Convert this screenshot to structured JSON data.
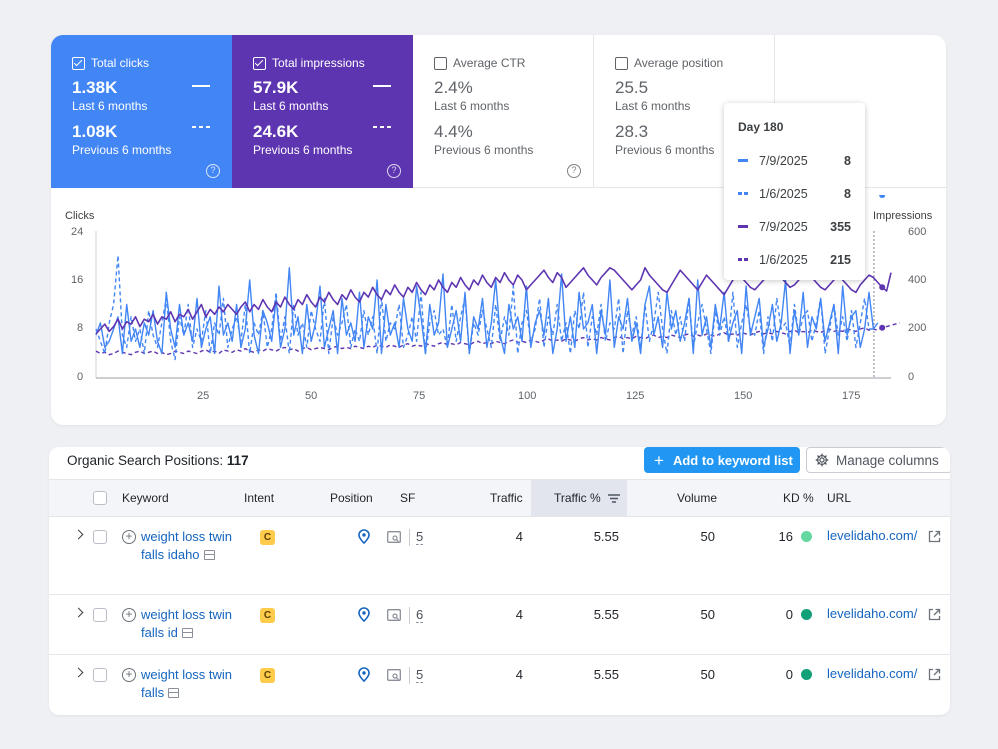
{
  "metrics": [
    {
      "label": "Total clicks",
      "checked": true,
      "current_value": "1.38K",
      "current_period": "Last 6 months",
      "previous_value": "1.08K",
      "previous_period": "Previous 6 months"
    },
    {
      "label": "Total impressions",
      "checked": true,
      "current_value": "57.9K",
      "current_period": "Last 6 months",
      "previous_value": "24.6K",
      "previous_period": "Previous 6 months"
    },
    {
      "label": "Average CTR",
      "checked": false,
      "current_value": "2.4%",
      "current_period": "Last 6 months",
      "previous_value": "4.4%",
      "previous_period": "Previous 6 months"
    },
    {
      "label": "Average position",
      "checked": false,
      "current_value": "25.5",
      "current_period": "Last 6 months",
      "previous_value": "28.3",
      "previous_period": "Previous 6 months"
    }
  ],
  "chart": {
    "left_axis_title": "Clicks",
    "right_axis_title": "Impressions",
    "left_ticks": [
      "24",
      "16",
      "8",
      "0"
    ],
    "right_ticks": [
      "600",
      "400",
      "200",
      "0"
    ],
    "x_ticks": [
      "25",
      "50",
      "75",
      "100",
      "125",
      "150",
      "175"
    ]
  },
  "tooltip": {
    "title": "Day 180",
    "rows": [
      {
        "date": "7/9/2025",
        "value": "8"
      },
      {
        "date": "1/6/2025",
        "value": "8"
      },
      {
        "date": "7/9/2025",
        "value": "355"
      },
      {
        "date": "1/6/2025",
        "value": "215"
      }
    ]
  },
  "chart_data": {
    "type": "line",
    "xlabel": "",
    "ylabel": "Clicks",
    "y2label": "Impressions",
    "xlim": [
      1,
      182
    ],
    "ylim": [
      0,
      24
    ],
    "y2lim": [
      0,
      600
    ],
    "legend": "tooltip",
    "grid": false,
    "series": [
      {
        "axis": "left",
        "color": "#4285f4",
        "style": "solid",
        "values": [
          7,
          9,
          5,
          6,
          8,
          10,
          4,
          12,
          6,
          8,
          5,
          9,
          7,
          11,
          6,
          4,
          14,
          8,
          5,
          12,
          7,
          9,
          6,
          13,
          5,
          8,
          10,
          4,
          15,
          7,
          9,
          6,
          12,
          5,
          8,
          16,
          7,
          4,
          11,
          9,
          6,
          13,
          5,
          8,
          18,
          7,
          10,
          4,
          12,
          6,
          9,
          15,
          5,
          8,
          11,
          4,
          13,
          7,
          9,
          6,
          14,
          5,
          10,
          8,
          16,
          4,
          12,
          7,
          9,
          5,
          13,
          8,
          6,
          15,
          10,
          4,
          12,
          7,
          9,
          17,
          5,
          8,
          11,
          6,
          14,
          4,
          10,
          8,
          13,
          5,
          9,
          16,
          7,
          4,
          12,
          8,
          10,
          6,
          15,
          5,
          9,
          11,
          7,
          13,
          4,
          8,
          17,
          6,
          10,
          5,
          14,
          8,
          9,
          12,
          4,
          11,
          7,
          16,
          5,
          10,
          8,
          13,
          6,
          9,
          4,
          12,
          15,
          7,
          10,
          5,
          14,
          8,
          11,
          6,
          9,
          13,
          4,
          16,
          7,
          10,
          5,
          12,
          8,
          14,
          6,
          9,
          11,
          4,
          15,
          7,
          10,
          13,
          5,
          8,
          12,
          6,
          9,
          16,
          4,
          11,
          7,
          14,
          5,
          10,
          8,
          13,
          6,
          9,
          12,
          4,
          15,
          7,
          10,
          11,
          5,
          8,
          14,
          8,
          9
        ]
      },
      {
        "axis": "left",
        "color": "#4285f4",
        "style": "dashed",
        "values": [
          8,
          6,
          4,
          9,
          12,
          20,
          7,
          5,
          10,
          6,
          8,
          4,
          11,
          7,
          5,
          9,
          13,
          6,
          3,
          10,
          7,
          12,
          5,
          8,
          6,
          11,
          4,
          9,
          7,
          13,
          5,
          8,
          10,
          6,
          12,
          4,
          9,
          7,
          11,
          5,
          8,
          14,
          6,
          10,
          4,
          12,
          7,
          9,
          5,
          11,
          8,
          6,
          13,
          4,
          10,
          7,
          9,
          12,
          5,
          8,
          6,
          11,
          7,
          10,
          4,
          13,
          6,
          9,
          8,
          12,
          5,
          7,
          10,
          6,
          14,
          4,
          9,
          11,
          7,
          8,
          5,
          12,
          6,
          10,
          13,
          4,
          9,
          7,
          11,
          8,
          5,
          12,
          6,
          10,
          7,
          15,
          4,
          9,
          11,
          6,
          8,
          13,
          5,
          10,
          7,
          12,
          6,
          9,
          4,
          11,
          8,
          14,
          5,
          10,
          7,
          12,
          6,
          9,
          8,
          13,
          4,
          11,
          7,
          10,
          5,
          12,
          6,
          9,
          14,
          8,
          4,
          11,
          7,
          10,
          6,
          13,
          5,
          9,
          12,
          8,
          4,
          11,
          7,
          10,
          6,
          14,
          5,
          9,
          12,
          8,
          7,
          11,
          4,
          10,
          6,
          13,
          8,
          9,
          5,
          12,
          7,
          10,
          11,
          6,
          9,
          13,
          4,
          8,
          12,
          7,
          10,
          6,
          11,
          5,
          9,
          13,
          8,
          8
        ]
      },
      {
        "axis": "right",
        "color": "#5e35b1",
        "style": "solid",
        "values": [
          180,
          200,
          220,
          190,
          210,
          240,
          200,
          230,
          220,
          250,
          210,
          240,
          230,
          260,
          220,
          250,
          240,
          270,
          230,
          260,
          250,
          280,
          240,
          270,
          300,
          250,
          280,
          260,
          290,
          270,
          300,
          280,
          260,
          290,
          310,
          270,
          300,
          280,
          320,
          290,
          270,
          310,
          290,
          330,
          300,
          280,
          320,
          300,
          340,
          310,
          290,
          330,
          310,
          350,
          320,
          300,
          340,
          320,
          360,
          330,
          310,
          350,
          330,
          370,
          340,
          320,
          360,
          340,
          380,
          350,
          330,
          370,
          350,
          390,
          360,
          340,
          380,
          360,
          400,
          370,
          350,
          390,
          370,
          410,
          380,
          360,
          400,
          380,
          420,
          390,
          370,
          410,
          390,
          430,
          400,
          380,
          420,
          400,
          360,
          380,
          400,
          420,
          440,
          410,
          390,
          430,
          410,
          370,
          390,
          410,
          430,
          450,
          420,
          400,
          380,
          410,
          430,
          450,
          440,
          420,
          400,
          380,
          360,
          380,
          400,
          450,
          420,
          400,
          380,
          360,
          350,
          380,
          410,
          440,
          420,
          400,
          380,
          360,
          390,
          420,
          400,
          380,
          360,
          340,
          370,
          400,
          430,
          410,
          390,
          370,
          360,
          380,
          400,
          420,
          440,
          430,
          410,
          390,
          370,
          380,
          400,
          420,
          440,
          410,
          390,
          370,
          360,
          380,
          400,
          420,
          400,
          380,
          360,
          350,
          380,
          400,
          420,
          410,
          390,
          370,
          355,
          430
        ]
      },
      {
        "axis": "right",
        "color": "#5e35b1",
        "style": "dashed",
        "values": [
          110,
          100,
          105,
          95,
          100,
          110,
          105,
          100,
          95,
          105,
          110,
          100,
          105,
          110,
          100,
          105,
          95,
          100,
          110,
          105,
          100,
          110,
          105,
          100,
          110,
          115,
          105,
          110,
          100,
          115,
          110,
          105,
          115,
          110,
          120,
          110,
          105,
          115,
          110,
          120,
          115,
          110,
          120,
          125,
          115,
          120,
          110,
          120,
          125,
          115,
          120,
          125,
          120,
          115,
          125,
          130,
          120,
          125,
          120,
          130,
          125,
          120,
          130,
          125,
          135,
          130,
          125,
          135,
          130,
          125,
          135,
          140,
          130,
          135,
          130,
          140,
          135,
          130,
          140,
          145,
          135,
          140,
          135,
          145,
          140,
          135,
          145,
          150,
          140,
          145,
          140,
          150,
          145,
          140,
          150,
          155,
          145,
          150,
          145,
          155,
          150,
          145,
          155,
          160,
          150,
          155,
          150,
          160,
          155,
          150,
          160,
          165,
          155,
          160,
          155,
          165,
          160,
          155,
          165,
          170,
          160,
          165,
          160,
          170,
          165,
          160,
          170,
          175,
          165,
          170,
          165,
          175,
          170,
          165,
          175,
          180,
          170,
          175,
          170,
          180,
          175,
          170,
          180,
          185,
          175,
          180,
          175,
          185,
          180,
          175,
          185,
          190,
          180,
          185,
          180,
          190,
          185,
          180,
          190,
          195,
          185,
          190,
          185,
          195,
          190,
          185,
          195,
          200,
          190,
          195,
          190,
          200,
          195,
          190,
          200,
          205,
          195,
          200,
          195,
          205,
          210,
          215,
          220,
          225
        ]
      }
    ]
  },
  "positions": {
    "title": "Organic Search Positions:",
    "count": "117",
    "add_button": "Add to keyword list",
    "manage_button": "Manage columns",
    "columns": [
      "Keyword",
      "Intent",
      "Position",
      "SF",
      "Traffic",
      "Traffic %",
      "Volume",
      "KD %",
      "URL"
    ],
    "rows": [
      {
        "keyword": "weight loss twin falls idaho",
        "intent": "C",
        "sf": "5",
        "traffic": "4",
        "traffic_pct": "5.55",
        "volume": "50",
        "kd": "16",
        "kd_color": "#64d8a0",
        "url": "levelidaho.com/"
      },
      {
        "keyword": "weight loss twin falls id",
        "intent": "C",
        "sf": "6",
        "traffic": "4",
        "traffic_pct": "5.55",
        "volume": "50",
        "kd": "0",
        "kd_color": "#12a079",
        "url": "levelidaho.com/"
      },
      {
        "keyword": "weight loss twin falls",
        "intent": "C",
        "sf": "5",
        "traffic": "4",
        "traffic_pct": "5.55",
        "volume": "50",
        "kd": "0",
        "kd_color": "#12a079",
        "url": "levelidaho.com/"
      }
    ]
  }
}
